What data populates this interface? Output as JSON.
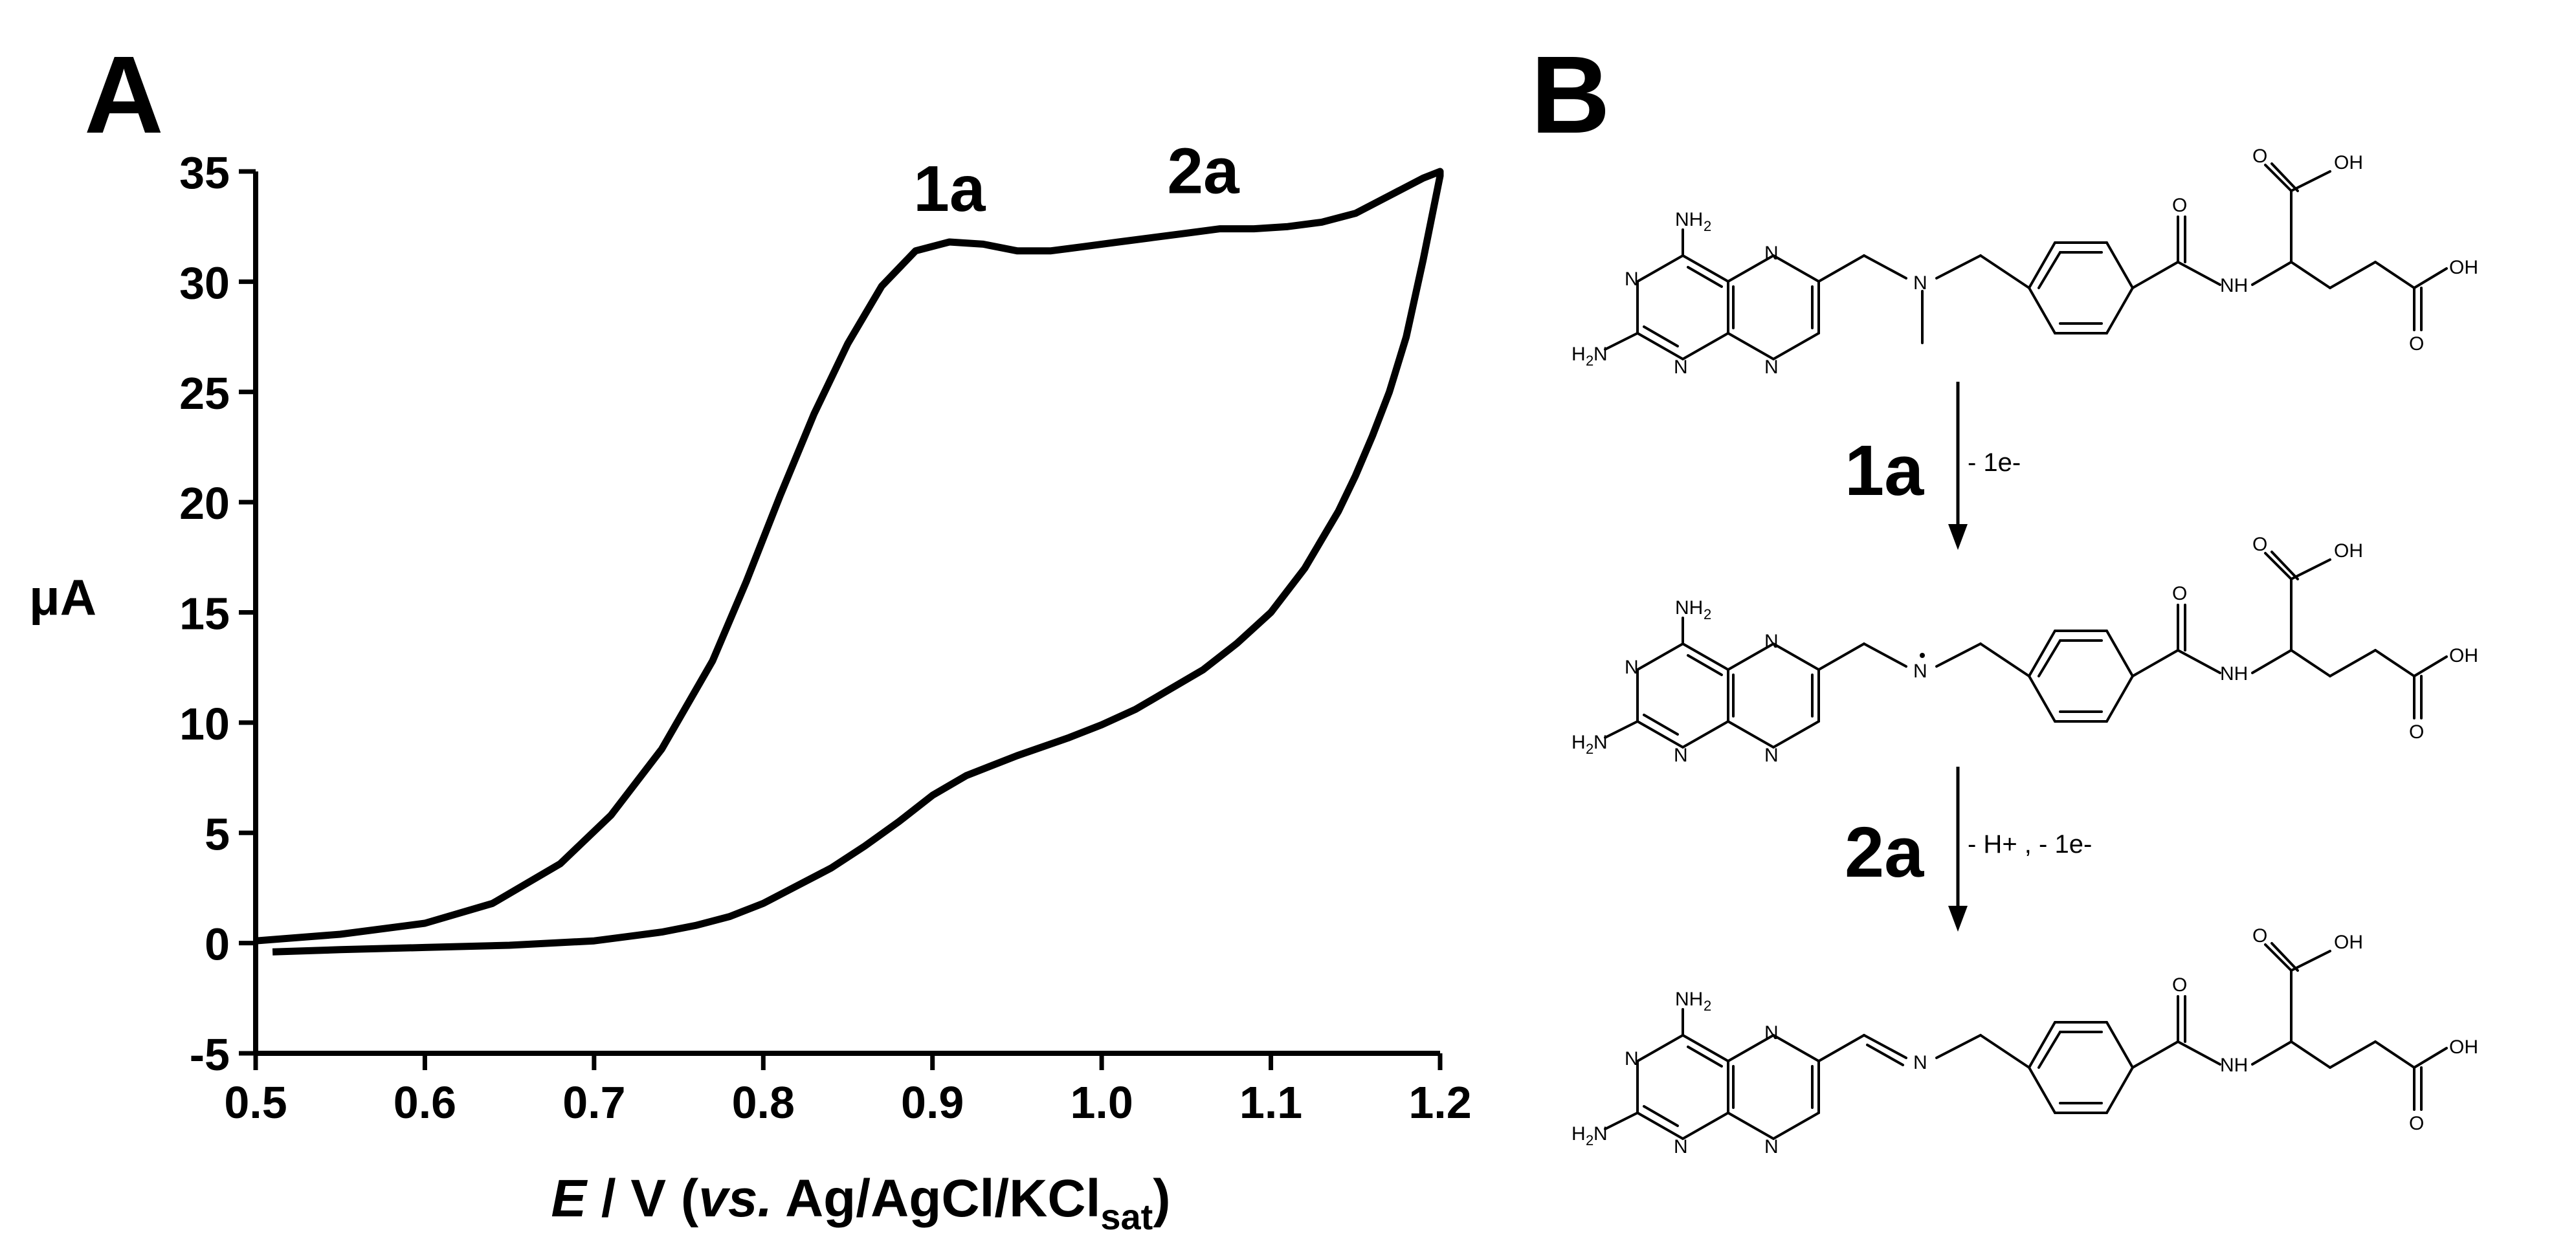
{
  "panels": {
    "a": "A",
    "b": "B"
  },
  "chart_data": {
    "type": "line",
    "xlabel": {
      "italic": "E",
      "rest": " / V (",
      "italic2": "vs.",
      "rest2": " Ag/AgCl/KCl",
      "sub": "sat",
      "end": ")"
    },
    "ylabel": "μA",
    "xlim": [
      0.5,
      1.2
    ],
    "ylim": [
      -5,
      35
    ],
    "x_ticks": [
      "0.5",
      "0.6",
      "0.7",
      "0.8",
      "0.9",
      "1.0",
      "1.1",
      "1.2"
    ],
    "y_ticks": [
      "-5",
      "0",
      "5",
      "10",
      "15",
      "20",
      "25",
      "30",
      "35"
    ],
    "grid": false,
    "annotations": [
      {
        "text": "1a",
        "x": 0.91,
        "y": 31.6
      },
      {
        "text": "2a",
        "x": 1.06,
        "y": 32.4
      }
    ],
    "series": [
      {
        "color": "#000000",
        "x": [
          0.5,
          0.55,
          0.6,
          0.64,
          0.68,
          0.71,
          0.74,
          0.77,
          0.79,
          0.81,
          0.83,
          0.85,
          0.87,
          0.89,
          0.91,
          0.93,
          0.95,
          0.97,
          0.99,
          1.01,
          1.03,
          1.05,
          1.07,
          1.09,
          1.11,
          1.13,
          1.15,
          1.17,
          1.19,
          1.2,
          1.2,
          1.19,
          1.18,
          1.17,
          1.16,
          1.15,
          1.14,
          1.12,
          1.1,
          1.08,
          1.06,
          1.04,
          1.02,
          1.0,
          0.98,
          0.95,
          0.92,
          0.9,
          0.88,
          0.86,
          0.84,
          0.82,
          0.8,
          0.78,
          0.76,
          0.74,
          0.72,
          0.7,
          0.65,
          0.6,
          0.55,
          0.51
        ],
        "y": [
          0.1,
          0.4,
          0.9,
          1.8,
          3.6,
          5.8,
          8.8,
          12.8,
          16.4,
          20.3,
          24.0,
          27.2,
          29.8,
          31.4,
          31.8,
          31.7,
          31.4,
          31.4,
          31.6,
          31.8,
          32.0,
          32.2,
          32.4,
          32.4,
          32.5,
          32.7,
          33.1,
          33.9,
          34.7,
          35.0,
          34.8,
          31.0,
          27.5,
          25.0,
          23.0,
          21.2,
          19.6,
          17.0,
          15.0,
          13.6,
          12.4,
          11.5,
          10.6,
          9.9,
          9.3,
          8.5,
          7.6,
          6.7,
          5.5,
          4.4,
          3.4,
          2.6,
          1.8,
          1.2,
          0.8,
          0.5,
          0.3,
          0.1,
          -0.1,
          -0.2,
          -0.3,
          -0.4
        ]
      }
    ]
  },
  "scheme": {
    "step1": {
      "label": "1a",
      "note": "- 1e-"
    },
    "step2": {
      "label": "2a",
      "note": "- H+ , - 1e-"
    },
    "atoms": {
      "nh2": "NH",
      "two": "2",
      "h2": "H",
      "h2n_n": "N",
      "n": "N",
      "o": "O",
      "oh": "OH",
      "nh": "NH"
    }
  }
}
